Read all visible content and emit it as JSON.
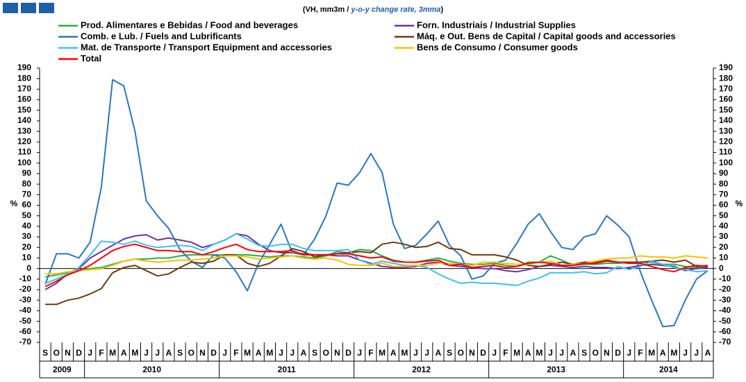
{
  "chart_data": {
    "type": "line",
    "subtitle": [
      "(VH, mm3m  / ",
      "y-o-y change rate, 3mma",
      ")"
    ],
    "y_label": "%",
    "categories": [
      "S",
      "O",
      "N",
      "D",
      "J",
      "F",
      "M",
      "A",
      "M",
      "J",
      "J",
      "A",
      "S",
      "O",
      "N",
      "D",
      "J",
      "F",
      "M",
      "A",
      "M",
      "J",
      "J",
      "A",
      "S",
      "O",
      "N",
      "D",
      "J",
      "F",
      "M",
      "A",
      "M",
      "J",
      "J",
      "A",
      "S",
      "O",
      "N",
      "D",
      "J",
      "F",
      "M",
      "A",
      "M",
      "J",
      "J",
      "A",
      "S",
      "O",
      "N",
      "D",
      "J",
      "F",
      "M",
      "A",
      "M",
      "J",
      "J",
      "A"
    ],
    "years": [
      "2009",
      "2010",
      "2011",
      "2012",
      "2013",
      "2014"
    ],
    "ylim": [
      -70,
      190
    ],
    "yticks": [
      190,
      180,
      170,
      160,
      150,
      140,
      130,
      120,
      110,
      100,
      90,
      80,
      70,
      60,
      50,
      40,
      30,
      20,
      10,
      0,
      -10,
      -20,
      -30,
      -40,
      -50,
      -60,
      -70
    ],
    "y2lim": [
      -70,
      190
    ],
    "y2ticks": [
      190,
      180,
      170,
      160,
      150,
      140,
      130,
      120,
      110,
      100,
      90,
      80,
      70,
      60,
      50,
      40,
      30,
      20,
      10,
      0,
      -10,
      -20,
      -30,
      -40,
      -50,
      -60,
      -70
    ],
    "series": [
      {
        "name": "Prod. Alimentares e Bebidas / Food and beverages",
        "color": "#22b04c",
        "values": [
          -8,
          -6,
          -4,
          -2,
          0,
          1,
          4,
          7,
          9,
          9,
          10,
          10,
          12,
          13,
          13,
          13,
          13,
          13,
          13,
          12,
          11,
          12,
          12,
          11,
          10,
          12,
          16,
          15,
          18,
          17,
          12,
          8,
          6,
          6,
          8,
          10,
          7,
          5,
          4,
          4,
          5,
          3,
          2,
          6,
          6,
          12,
          8,
          3,
          4,
          4,
          5,
          5,
          6,
          6,
          6,
          4,
          4,
          2,
          1,
          2
        ]
      },
      {
        "name": "Forn. Industriais / Industrial Supplies",
        "color": "#7030a0",
        "values": [
          -20,
          -14,
          -5,
          0,
          10,
          16,
          22,
          28,
          31,
          32,
          27,
          29,
          27,
          25,
          20,
          23,
          27,
          33,
          31,
          23,
          17,
          15,
          15,
          14,
          13,
          13,
          12,
          12,
          8,
          5,
          2,
          1,
          1,
          2,
          5,
          6,
          3,
          2,
          1,
          0,
          0,
          -2,
          -3,
          -1,
          2,
          3,
          2,
          1,
          2,
          1,
          1,
          0,
          1,
          3,
          4,
          3,
          2,
          -2,
          0,
          1
        ]
      },
      {
        "name": "Comb. e Lub. /  Fuels and Lubrificants",
        "color": "#2e75b6",
        "values": [
          -15,
          14,
          14,
          10,
          25,
          77,
          179,
          173,
          130,
          64,
          50,
          38,
          18,
          7,
          1,
          13,
          10,
          -3,
          -21,
          5,
          23,
          42,
          15,
          13,
          28,
          50,
          81,
          79,
          91,
          109,
          91,
          42,
          19,
          22,
          33,
          45,
          22,
          12,
          -10,
          -7,
          5,
          8,
          24,
          42,
          52,
          35,
          20,
          18,
          30,
          33,
          50,
          41,
          30,
          -3,
          -30,
          -55,
          -54,
          -30,
          -10,
          -2
        ]
      },
      {
        "name": "Máq. e Out. Bens de Capital / Capital goods and accessories",
        "color": "#6b3a12",
        "values": [
          -34,
          -34,
          -30,
          -28,
          -24,
          -19,
          -4,
          1,
          3,
          -2,
          -7,
          -5,
          1,
          6,
          5,
          7,
          13,
          13,
          5,
          2,
          5,
          12,
          19,
          16,
          11,
          13,
          14,
          15,
          16,
          15,
          23,
          25,
          23,
          20,
          21,
          25,
          19,
          18,
          13,
          13,
          13,
          11,
          8,
          3,
          2,
          4,
          6,
          4,
          6,
          6,
          8,
          6,
          6,
          6,
          7,
          8,
          6,
          8,
          2,
          3
        ]
      },
      {
        "name": "Mat. de Transporte / Transport Equipment and accessories",
        "color": "#3ec0ef",
        "values": [
          -14,
          -10,
          -5,
          1,
          13,
          26,
          25,
          23,
          26,
          22,
          20,
          21,
          22,
          21,
          17,
          23,
          27,
          33,
          28,
          22,
          21,
          23,
          23,
          19,
          17,
          17,
          17,
          18,
          8,
          4,
          7,
          5,
          3,
          3,
          1,
          -5,
          -10,
          -14,
          -13,
          -14,
          -14,
          -15,
          -16,
          -12,
          -9,
          -4,
          -4,
          -4,
          -3,
          -5,
          -4,
          2,
          -1,
          2,
          7,
          4,
          1,
          -1,
          -3,
          -2
        ]
      },
      {
        "name": "Bens de Consumo / Consumer goods",
        "color": "#ffc000",
        "values": [
          -5,
          -5,
          -3,
          -2,
          -1,
          0,
          3,
          7,
          9,
          7,
          6,
          7,
          8,
          8,
          9,
          10,
          12,
          12,
          11,
          9,
          10,
          11,
          12,
          10,
          9,
          10,
          8,
          4,
          3,
          3,
          5,
          2,
          2,
          3,
          3,
          5,
          5,
          4,
          3,
          6,
          6,
          5,
          4,
          4,
          6,
          7,
          3,
          4,
          5,
          7,
          9,
          10,
          10,
          12,
          11,
          11,
          10,
          12,
          11,
          10
        ]
      },
      {
        "name": "Total",
        "color": "#ff0000",
        "values": [
          -17,
          -12,
          -6,
          -2,
          3,
          10,
          17,
          21,
          23,
          20,
          17,
          17,
          16,
          16,
          13,
          16,
          20,
          23,
          18,
          16,
          16,
          16,
          17,
          13,
          13,
          13,
          14,
          14,
          12,
          10,
          11,
          7,
          6,
          6,
          7,
          8,
          3,
          4,
          1,
          2,
          3,
          1,
          2,
          5,
          6,
          5,
          3,
          3,
          5,
          5,
          7,
          6,
          5,
          5,
          2,
          -1,
          -3,
          1,
          3,
          2
        ]
      }
    ]
  }
}
